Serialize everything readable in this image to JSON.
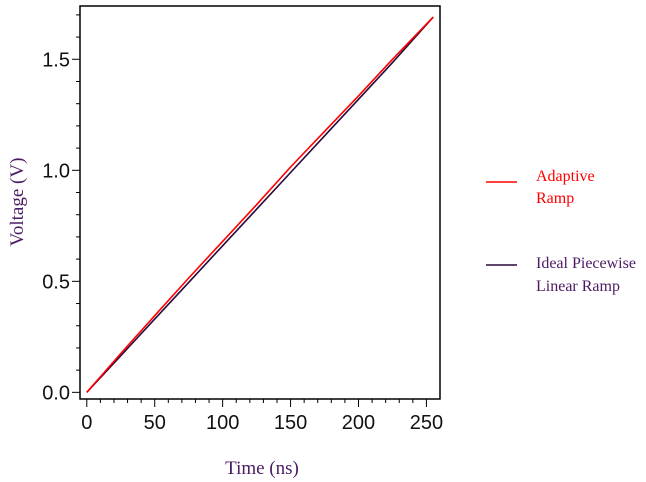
{
  "chart_data": {
    "type": "line",
    "title": "",
    "xlabel": "Time (ns)",
    "ylabel": "Voltage (V)",
    "xlim": [
      -5,
      260
    ],
    "ylim": [
      -0.03,
      1.74
    ],
    "x_ticks": [
      0,
      50,
      100,
      150,
      200,
      250
    ],
    "x_tick_labels": [
      "0",
      "50",
      "100",
      "150",
      "200",
      "250"
    ],
    "y_ticks": [
      0.0,
      0.5,
      1.0,
      1.5
    ],
    "y_tick_labels": [
      "0.0",
      "0.5",
      "1.0",
      "1.5"
    ],
    "grid": false,
    "legend_position": "right",
    "series": [
      {
        "name": "Adaptive Ramp",
        "color": "#ff0000",
        "x": [
          0,
          25,
          50,
          75,
          100,
          125,
          150,
          175,
          200,
          225,
          255
        ],
        "y": [
          0.0,
          0.175,
          0.345,
          0.515,
          0.68,
          0.845,
          1.015,
          1.175,
          1.335,
          1.5,
          1.69
        ]
      },
      {
        "name": "Ideal Piecewise Linear Ramp",
        "color": "#2a0a3a",
        "x": [
          0,
          25,
          50,
          75,
          100,
          125,
          150,
          175,
          200,
          225,
          255
        ],
        "y": [
          0.0,
          0.165,
          0.33,
          0.495,
          0.66,
          0.825,
          0.99,
          1.155,
          1.32,
          1.485,
          1.69
        ]
      }
    ],
    "legend": [
      {
        "lines": [
          "Adaptive",
          "Ramp"
        ],
        "color": "#ff0000"
      },
      {
        "lines": [
          "Ideal Piecewise",
          "Linear Ramp"
        ],
        "color": "#4b1a63"
      }
    ]
  }
}
